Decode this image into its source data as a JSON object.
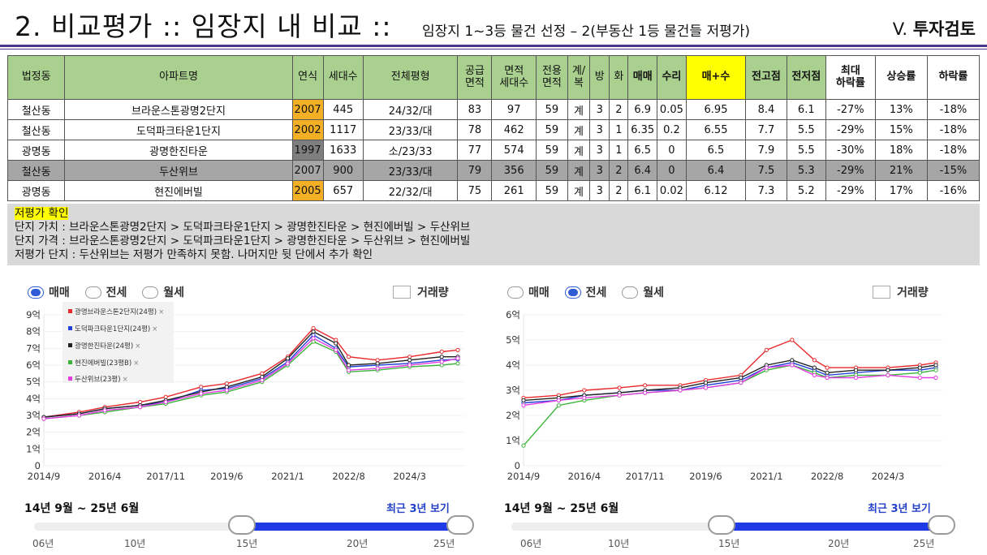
{
  "header": {
    "title": "2. 비교평가 :: 임장지 내 비교 ::",
    "subtitle": "임장지 1~3등 물건 선정 – 2(부동산 1등 물건들 저평가)",
    "section_prefix": "V.",
    "section_name": "투자검토"
  },
  "table": {
    "headers": [
      "법정동",
      "아파트명",
      "연식",
      "세대수",
      "전체평형",
      "공급\n면적",
      "면적\n세대수",
      "전용\n면적",
      "계/\n복",
      "방",
      "화",
      "매매",
      "수리",
      "매+수",
      "전고점",
      "전저점",
      "최대\n하락률",
      "상승률",
      "하락률"
    ],
    "rows": [
      [
        "철산동",
        "브라운스톤광명2단지",
        "2007",
        "445",
        "24/32/대",
        "83",
        "97",
        "59",
        "계",
        "3",
        "2",
        "6.9",
        "0.05",
        "6.95",
        "8.4",
        "6.1",
        "-27%",
        "13%",
        "-18%"
      ],
      [
        "철산동",
        "도덕파크타운1단지",
        "2002",
        "1117",
        "23/33/대",
        "78",
        "462",
        "59",
        "계",
        "3",
        "1",
        "6.35",
        "0.2",
        "6.55",
        "7.7",
        "5.5",
        "-29%",
        "15%",
        "-18%"
      ],
      [
        "광명동",
        "광명한진타운",
        "1997",
        "1633",
        "소/23/33",
        "77",
        "574",
        "59",
        "계",
        "3",
        "1",
        "6.5",
        "0",
        "6.5",
        "7.9",
        "5.5",
        "-30%",
        "18%",
        "-18%"
      ],
      [
        "철산동",
        "두산위브",
        "2007",
        "900",
        "23/33/대",
        "79",
        "356",
        "59",
        "계",
        "3",
        "2",
        "6.4",
        "0",
        "6.4",
        "7.5",
        "5.3",
        "-29%",
        "21%",
        "-15%"
      ],
      [
        "광명동",
        "현진에버빌",
        "2005",
        "657",
        "22/32/대",
        "75",
        "261",
        "59",
        "계",
        "3",
        "2",
        "6.1",
        "0.02",
        "6.12",
        "7.3",
        "5.2",
        "-29%",
        "17%",
        "-16%"
      ]
    ],
    "highlight_row": 3,
    "year_cell_colors": [
      "#f4b024",
      "#f4b024",
      "#7f7f7f",
      "",
      "#f4b024"
    ]
  },
  "note": {
    "title": "저평가 확인",
    "lines": [
      "단지 가치 : 브라운스톤광명2단지 > 도덕파크타운1단지 > 광명한진타운 > 현진에버빌 > 두산위브",
      "단지 가격 : 브라운스톤광명2단지 > 도덕파크타운1단지 > 광명한진타운 > 두산위브 > 현진에버빌",
      "저평가 단지 : 두산위브는 저평가 만족하지 못함. 나머지만 뒷 단에서 추가 확인"
    ]
  },
  "controls": {
    "radio_labels": [
      "매매",
      "전세",
      "월세"
    ],
    "volume_label": "거래량",
    "period": "14년 9월 ~ 25년 6월",
    "recent_label": "최근 3년 보기",
    "slider_ticks": [
      "06년",
      "10년",
      "15년",
      "20년",
      "25년"
    ],
    "slider_range": [
      0.44,
      1.0
    ]
  },
  "legend": {
    "names": [
      "광명브라운스톤2단지(24평)",
      "도덕파크타운1단지(24평)",
      "광명한진타운(24평)",
      "현진에버빌(23평B)",
      "두산위브(23평)"
    ],
    "colors": [
      "#e8282b",
      "#2343d8",
      "#222222",
      "#3cb43c",
      "#e23ce0"
    ],
    "close_glyph": "×"
  },
  "chart_data": [
    {
      "type": "line",
      "title": "매매",
      "ylim": [
        0,
        9
      ],
      "yticks": [
        "0",
        "1억",
        "2억",
        "3억",
        "4억",
        "5억",
        "6억",
        "7억",
        "8억",
        "9억"
      ],
      "x_tick_labels": [
        "2014/9",
        "2016/4",
        "2017/11",
        "2019/6",
        "2021/1",
        "2022/8",
        "2024/3"
      ],
      "x": [
        "2014/9",
        "2015/8",
        "2016/4",
        "2017/3",
        "2017/11",
        "2018/10",
        "2019/6",
        "2020/5",
        "2021/1",
        "2021/9",
        "2022/4",
        "2022/8",
        "2023/5",
        "2024/3",
        "2025/1",
        "2025/6"
      ],
      "series": [
        {
          "name": "광명브라운스톤2단지(24평)",
          "values": [
            2.9,
            3.2,
            3.5,
            3.8,
            4.1,
            4.7,
            4.9,
            5.5,
            6.5,
            8.2,
            7.5,
            6.5,
            6.3,
            6.5,
            6.8,
            6.9
          ]
        },
        {
          "name": "도덕파크타운1단지(24평)",
          "values": [
            2.9,
            3.1,
            3.4,
            3.6,
            3.8,
            4.5,
            4.6,
            5.2,
            6.2,
            7.8,
            7.0,
            5.9,
            6.0,
            6.1,
            6.3,
            6.35
          ]
        },
        {
          "name": "광명한진타운(24평)",
          "values": [
            2.9,
            3.1,
            3.4,
            3.6,
            3.9,
            4.4,
            4.7,
            5.3,
            6.4,
            8.0,
            7.3,
            6.0,
            6.1,
            6.3,
            6.5,
            6.5
          ]
        },
        {
          "name": "현진에버빌(23평B)",
          "values": [
            2.8,
            3.0,
            3.2,
            3.5,
            3.7,
            4.2,
            4.4,
            5.0,
            6.0,
            7.4,
            6.8,
            5.6,
            5.7,
            5.9,
            6.0,
            6.1
          ]
        },
        {
          "name": "두산위브(23평)",
          "values": [
            2.8,
            3.0,
            3.3,
            3.5,
            3.8,
            4.3,
            4.5,
            5.1,
            6.1,
            7.6,
            6.9,
            5.7,
            5.8,
            6.0,
            6.2,
            6.4
          ]
        }
      ]
    },
    {
      "type": "line",
      "title": "전세",
      "ylim": [
        0,
        6
      ],
      "yticks": [
        "0",
        "1억",
        "2억",
        "3억",
        "4억",
        "5억",
        "6억"
      ],
      "x_tick_labels": [
        "2014/9",
        "2016/4",
        "2017/11",
        "2019/6",
        "2021/1",
        "2022/8",
        "2024/3"
      ],
      "x": [
        "2014/9",
        "2015/8",
        "2016/4",
        "2017/3",
        "2017/11",
        "2018/10",
        "2019/6",
        "2020/5",
        "2021/1",
        "2021/9",
        "2022/4",
        "2022/8",
        "2023/5",
        "2024/3",
        "2025/1",
        "2025/6"
      ],
      "series": [
        {
          "name": "광명브라운스톤2단지(24평)",
          "values": [
            2.7,
            2.8,
            3.0,
            3.1,
            3.2,
            3.2,
            3.4,
            3.6,
            4.6,
            5.0,
            4.2,
            3.9,
            3.9,
            3.9,
            4.0,
            4.1
          ]
        },
        {
          "name": "도덕파크타운1단지(24평)",
          "values": [
            2.5,
            2.6,
            2.8,
            2.9,
            3.0,
            3.0,
            3.2,
            3.4,
            3.9,
            4.1,
            3.8,
            3.6,
            3.7,
            3.8,
            3.8,
            3.9
          ]
        },
        {
          "name": "광명한진타운(24평)",
          "values": [
            2.6,
            2.7,
            2.8,
            2.9,
            3.0,
            3.1,
            3.3,
            3.5,
            4.0,
            4.2,
            3.9,
            3.7,
            3.8,
            3.8,
            3.9,
            4.0
          ]
        },
        {
          "name": "현진에버빌(23평B)",
          "values": [
            0.8,
            2.4,
            2.6,
            2.8,
            2.9,
            3.0,
            3.1,
            3.3,
            3.8,
            4.0,
            3.7,
            3.5,
            3.6,
            3.6,
            3.7,
            3.8
          ]
        },
        {
          "name": "두산위브(23평)",
          "values": [
            2.4,
            2.6,
            2.7,
            2.8,
            2.9,
            3.0,
            3.1,
            3.3,
            3.9,
            4.0,
            3.6,
            3.5,
            3.5,
            3.6,
            3.5,
            3.5
          ]
        }
      ]
    }
  ]
}
